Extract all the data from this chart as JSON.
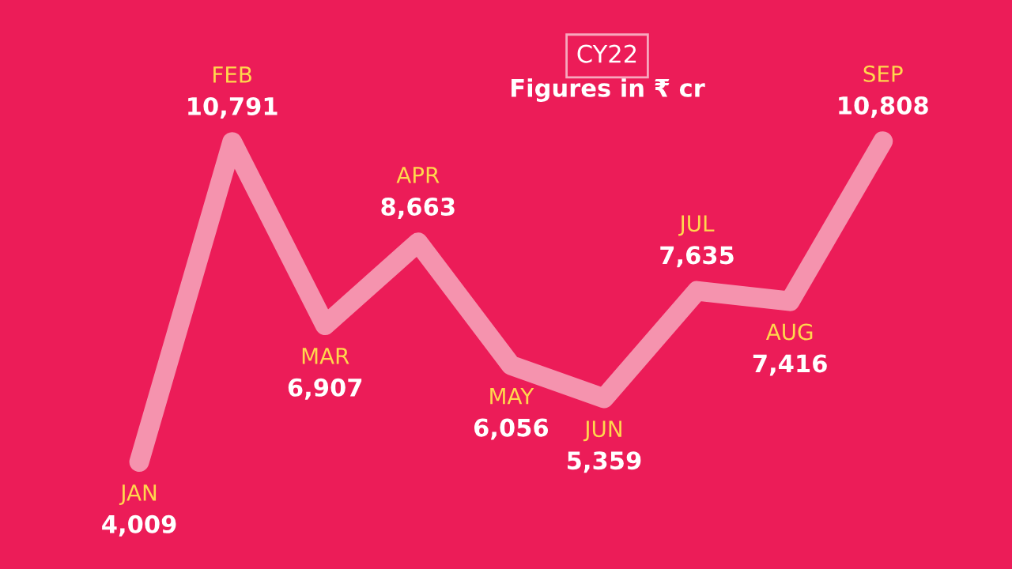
{
  "chart_data": {
    "type": "line",
    "title": "CY22",
    "subtitle": "Figures in ₹ cr",
    "categories": [
      "JAN",
      "FEB",
      "MAR",
      "APR",
      "MAY",
      "JUN",
      "JUL",
      "AUG",
      "SEP"
    ],
    "series": [
      {
        "color": "#f7a8bd",
        "values": [
          4009,
          10791,
          6907,
          8663,
          6056,
          5359,
          7635,
          7416,
          10808
        ],
        "value_labels": [
          "4,009",
          "10,791",
          "6,907",
          "8,663",
          "6,056",
          "5,359",
          "7,635",
          "7,416",
          "10,808"
        ]
      }
    ],
    "legend": false,
    "tick_labels": false,
    "marker": "none",
    "line_style": "solid"
  }
}
